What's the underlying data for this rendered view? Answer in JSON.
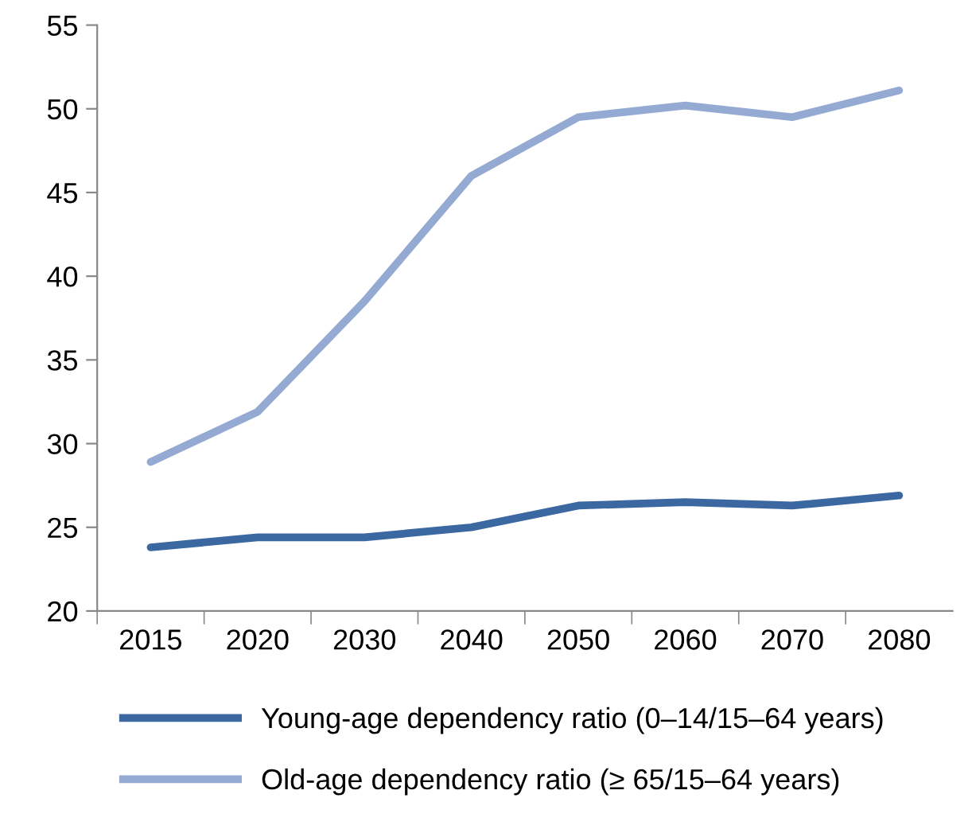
{
  "chart_data": {
    "type": "line",
    "categories": [
      "2015",
      "2020",
      "2030",
      "2040",
      "2050",
      "2060",
      "2070",
      "2080"
    ],
    "series": [
      {
        "name": "Young-age dependency ratio (0–14/15–64 years)",
        "color": "#3c68a2",
        "values": [
          23.8,
          24.4,
          24.4,
          25.0,
          26.3,
          26.5,
          26.3,
          26.9
        ]
      },
      {
        "name": "Old-age dependency ratio (≥ 65/15–64 years)",
        "color": "#94aad2",
        "values": [
          28.9,
          31.9,
          38.5,
          46.0,
          49.5,
          50.2,
          49.5,
          51.1
        ]
      }
    ],
    "ylim": [
      20,
      55
    ],
    "yticks": [
      20,
      25,
      30,
      35,
      40,
      45,
      50,
      55
    ],
    "grid": false,
    "legend": "bottom",
    "marker": "none",
    "line_style": "solid"
  }
}
